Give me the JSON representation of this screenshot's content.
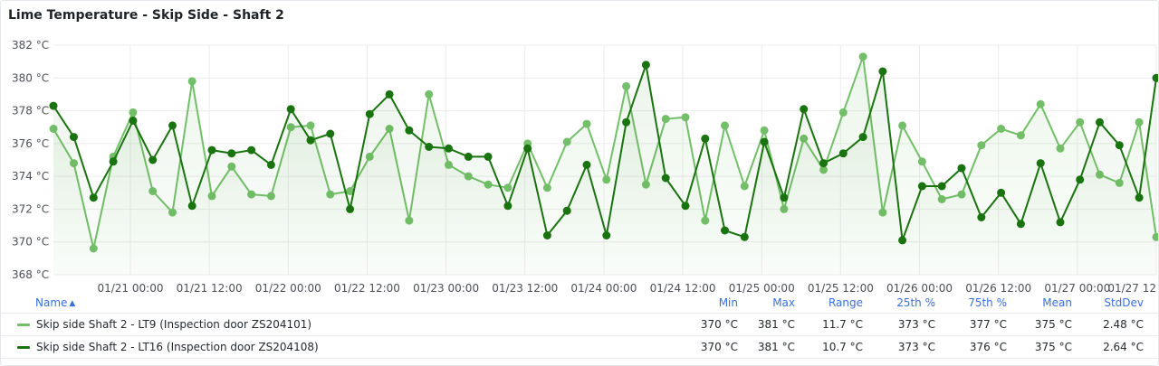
{
  "panel": {
    "title": "Lime Temperature - Skip Side - Shaft 2"
  },
  "colors": {
    "series1": "#73bf69",
    "series2": "#19730e",
    "grid": "#ececec",
    "legend_header": "#3871dc"
  },
  "chart_data": {
    "type": "line",
    "title": "Lime Temperature - Skip Side - Shaft 2",
    "ylim": [
      368,
      382
    ],
    "y_ticks": [
      "368 °C",
      "370 °C",
      "372 °C",
      "374 °C",
      "376 °C",
      "378 °C",
      "380 °C",
      "382 °C"
    ],
    "y_tick_values": [
      368,
      370,
      372,
      374,
      376,
      378,
      380,
      382
    ],
    "x_ticks": [
      "01/21 00:00",
      "01/21 12:00",
      "01/22 00:00",
      "01/22 12:00",
      "01/23 00:00",
      "01/23 12:00",
      "01/24 00:00",
      "01/24 12:00",
      "01/25 00:00",
      "01/25 12:00",
      "01/26 00:00",
      "01/26 12:00",
      "01/27 00:00",
      "01/27 12"
    ],
    "x_tick_hours": [
      0,
      12,
      24,
      36,
      48,
      60,
      72,
      84,
      96,
      108,
      120,
      132,
      144,
      156
    ],
    "x_range_hours": [
      -11.7,
      156
    ],
    "x_reference": "01/21 00:00",
    "grid": true,
    "legend_placement": "bottom",
    "series": [
      {
        "name": "Skip side Shaft 2 - LT9 (Inspection door ZS204101)",
        "color": "#73bf69",
        "x_hours": [
          -11.7,
          -8.6,
          -5.6,
          -2.6,
          0.4,
          3.4,
          6.4,
          9.4,
          12.4,
          15.4,
          18.4,
          21.4,
          24.4,
          27.4,
          30.4,
          33.4,
          36.4,
          39.4,
          42.4,
          45.4,
          48.4,
          51.4,
          54.4,
          57.4,
          60.4,
          63.4,
          66.4,
          69.4,
          72.4,
          75.4,
          78.4,
          81.4,
          84.4,
          87.4,
          90.4,
          93.4,
          96.4,
          99.4,
          102.4,
          105.4,
          108.4,
          111.4,
          114.4,
          117.4,
          120.4,
          123.4,
          126.4,
          129.4,
          132.4,
          135.4,
          138.4,
          141.4,
          144.4,
          147.4,
          150.4,
          153.4,
          156.0
        ],
        "values": [
          376.9,
          374.8,
          369.6,
          375.2,
          377.9,
          373.1,
          371.8,
          379.8,
          372.8,
          374.6,
          372.9,
          372.8,
          377.0,
          377.1,
          372.9,
          373.1,
          375.2,
          376.9,
          371.3,
          379.0,
          374.7,
          374.0,
          373.5,
          373.3,
          376.0,
          373.3,
          376.1,
          377.2,
          373.8,
          379.5,
          373.5,
          377.5,
          377.6,
          371.3,
          377.1,
          373.4,
          376.8,
          372.0,
          376.3,
          374.4,
          377.9,
          381.3,
          371.8,
          377.1,
          374.9,
          372.6,
          372.9,
          375.9,
          376.9,
          376.5,
          378.4,
          375.7,
          377.3,
          374.1,
          373.6,
          377.3,
          370.3
        ]
      },
      {
        "name": "Skip side Shaft 2 - LT16 (Inspection door ZS204108)",
        "color": "#19730e",
        "x_hours": [
          -11.7,
          -8.6,
          -5.6,
          -2.6,
          0.4,
          3.4,
          6.4,
          9.4,
          12.4,
          15.4,
          18.4,
          21.4,
          24.4,
          27.4,
          30.4,
          33.4,
          36.4,
          39.4,
          42.4,
          45.4,
          48.4,
          51.4,
          54.4,
          57.4,
          60.4,
          63.4,
          66.4,
          69.4,
          72.4,
          75.4,
          78.4,
          81.4,
          84.4,
          87.4,
          90.4,
          93.4,
          96.4,
          99.4,
          102.4,
          105.4,
          108.4,
          111.4,
          114.4,
          117.4,
          120.4,
          123.4,
          126.4,
          129.4,
          132.4,
          135.4,
          138.4,
          141.4,
          144.4,
          147.4,
          150.4,
          153.4,
          156.0
        ],
        "values": [
          378.3,
          376.4,
          372.7,
          374.9,
          377.4,
          375.0,
          377.1,
          372.2,
          375.6,
          375.4,
          375.6,
          374.7,
          378.1,
          376.2,
          376.6,
          372.0,
          377.8,
          379.0,
          376.8,
          375.8,
          375.7,
          375.2,
          375.2,
          372.2,
          375.7,
          370.4,
          371.9,
          374.7,
          370.4,
          377.3,
          380.8,
          373.9,
          372.2,
          376.3,
          370.7,
          370.3,
          376.1,
          372.7,
          378.1,
          374.8,
          375.4,
          376.4,
          380.4,
          370.1,
          373.4,
          373.4,
          374.5,
          371.5,
          373.0,
          371.1,
          374.8,
          371.2,
          373.8,
          377.3,
          375.9,
          372.7,
          380.0
        ]
      }
    ]
  },
  "legend": {
    "headers": {
      "name": "Name",
      "min": "Min",
      "max": "Max",
      "range": "Range",
      "p25": "25th %",
      "p75": "75th %",
      "mean": "Mean",
      "stddev": "StdDev"
    },
    "sort_icon": "chevron-up-icon",
    "rows": [
      {
        "name": "Skip side Shaft 2 - LT9 (Inspection door ZS204101)",
        "min": "370 °C",
        "max": "381 °C",
        "range": "11.7 °C",
        "p25": "373 °C",
        "p75": "377 °C",
        "mean": "375 °C",
        "stddev": "2.48 °C"
      },
      {
        "name": "Skip side Shaft 2 - LT16 (Inspection door ZS204108)",
        "min": "370 °C",
        "max": "381 °C",
        "range": "10.7 °C",
        "p25": "373 °C",
        "p75": "376 °C",
        "mean": "375 °C",
        "stddev": "2.64 °C"
      }
    ]
  }
}
